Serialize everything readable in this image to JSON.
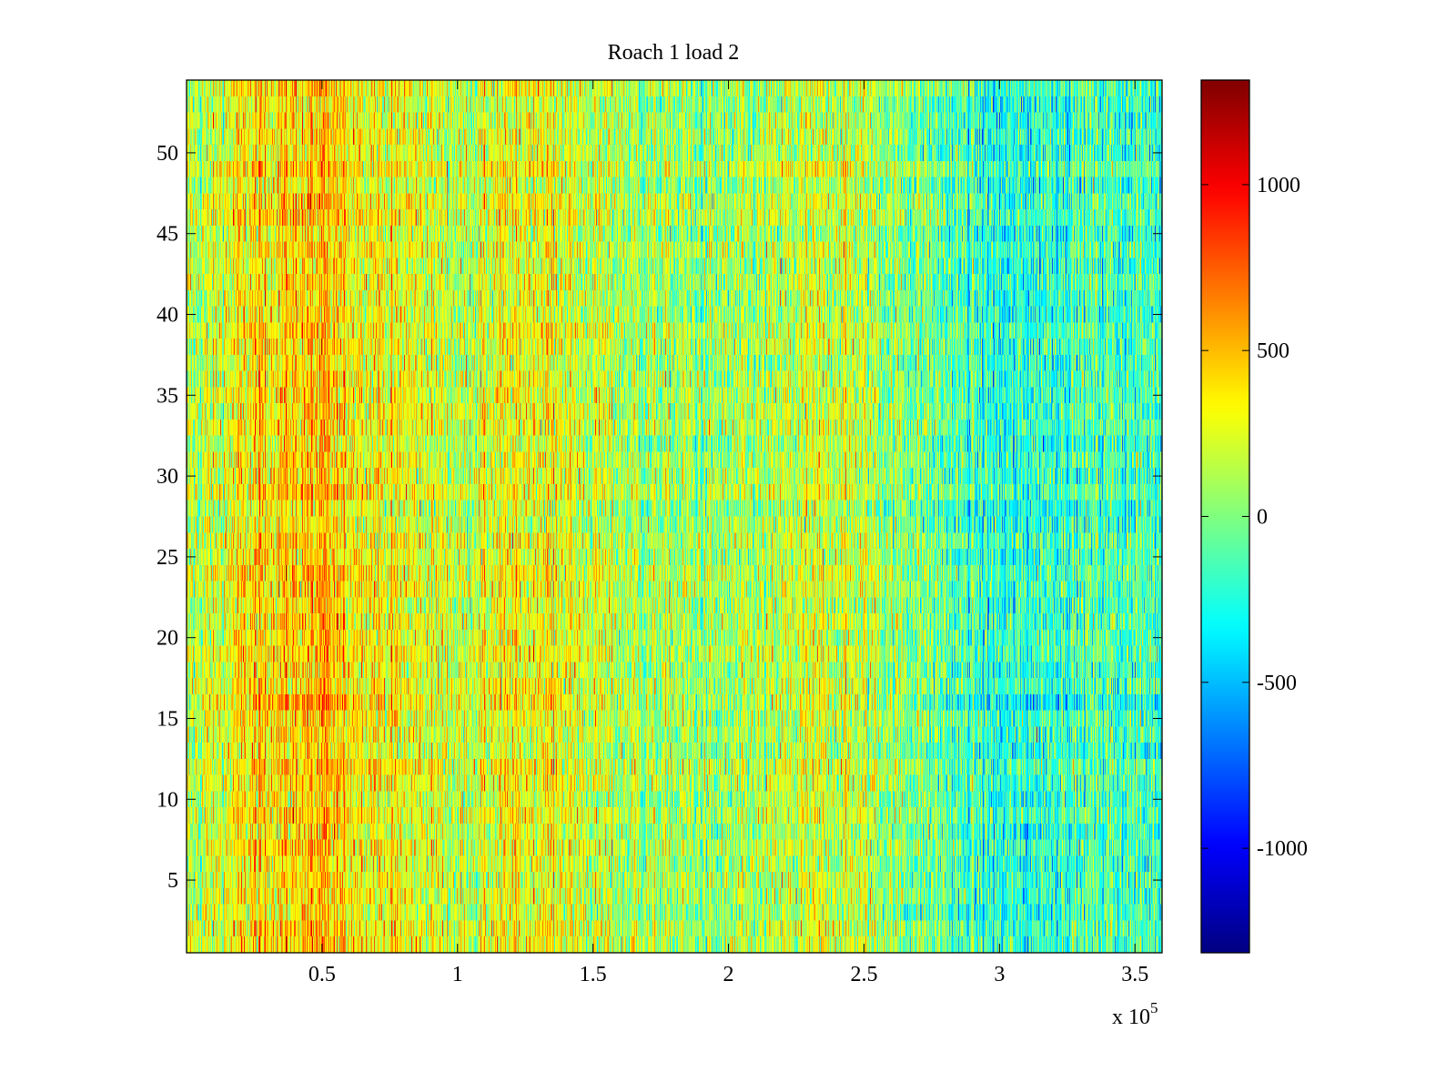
{
  "chart_data": {
    "type": "heatmap",
    "title": "Roach 1 load 2",
    "xlabel": "",
    "ylabel": "",
    "x_exponent_label": {
      "base": "x 10",
      "exponent": "5"
    },
    "xlim": [
      0,
      3.6
    ],
    "ylim": [
      0.5,
      54.5
    ],
    "rows": 54,
    "x_ticks": [
      "0.5",
      "1",
      "1.5",
      "2",
      "2.5",
      "3",
      "3.5"
    ],
    "x_tick_values": [
      0.5,
      1,
      1.5,
      2,
      2.5,
      3,
      3.5
    ],
    "y_ticks": [
      "5",
      "10",
      "15",
      "20",
      "25",
      "30",
      "35",
      "40",
      "45",
      "50"
    ],
    "y_tick_values": [
      5,
      10,
      15,
      20,
      25,
      30,
      35,
      40,
      45,
      50
    ],
    "colormap": "jet",
    "clim": [
      -1315,
      1315
    ],
    "colorbar_ticks": [
      "1000",
      "500",
      "0",
      "-500",
      "-1000"
    ],
    "colorbar_tick_values": [
      1000,
      500,
      0,
      -500,
      -1000
    ],
    "approx_column_mean_profile": {
      "x": [
        0,
        0.3,
        0.5,
        0.7,
        1.0,
        1.3,
        1.6,
        2.0,
        2.4,
        2.7,
        3.0,
        3.3,
        3.6
      ],
      "value": [
        100,
        420,
        450,
        330,
        180,
        330,
        120,
        40,
        220,
        0,
        -260,
        -120,
        -150
      ]
    },
    "grid": false,
    "legend": "none"
  }
}
